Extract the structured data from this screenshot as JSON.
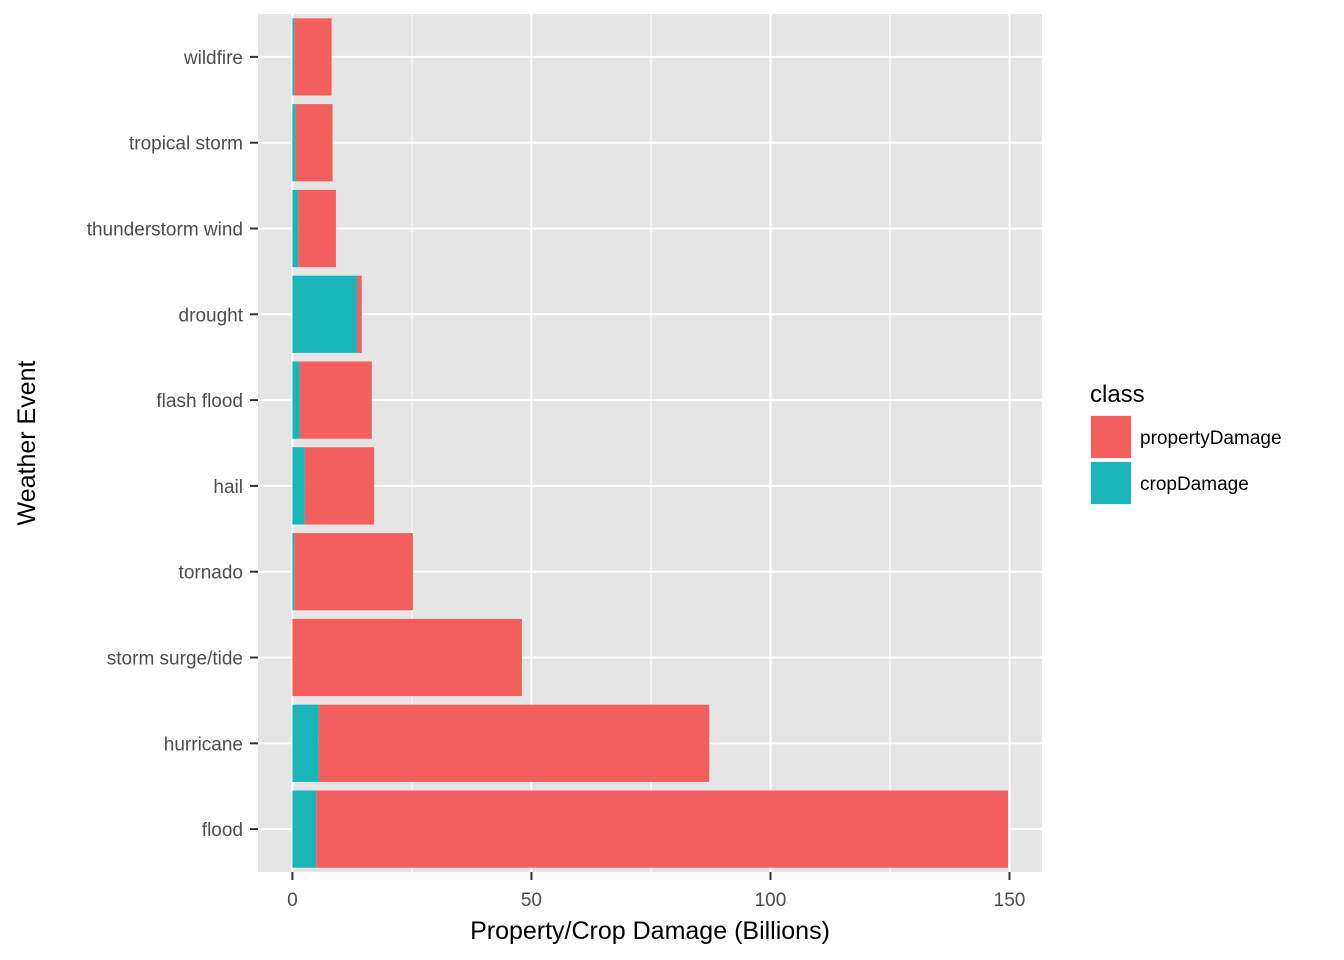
{
  "chart_data": {
    "type": "bar",
    "orientation": "horizontal",
    "stacked": true,
    "xlabel": "Property/Crop Damage (Billions)",
    "ylabel": "Weather Event",
    "xlim": [
      -7.2,
      156.8
    ],
    "x_ticks": [
      0,
      50,
      100,
      150
    ],
    "grid": true,
    "categories": [
      "flood",
      "hurricane",
      "storm surge/tide",
      "tornado",
      "hail",
      "flash flood",
      "drought",
      "thunderstorm wind",
      "tropical storm",
      "wildfire"
    ],
    "series": [
      {
        "name": "cropDamage",
        "color": "#19B5B8",
        "values": [
          5.0,
          5.5,
          0.0,
          0.4,
          2.6,
          1.5,
          13.5,
          1.2,
          0.7,
          0.4
        ]
      },
      {
        "name": "propertyDamage",
        "color": "#F25F5C",
        "values": [
          144.7,
          81.7,
          48.0,
          24.8,
          14.5,
          15.1,
          1.0,
          7.9,
          7.7,
          7.8
        ]
      }
    ],
    "legend": {
      "title": "class",
      "position": "right",
      "entries": [
        "propertyDamage",
        "cropDamage"
      ]
    }
  },
  "colors": {
    "panel_background": "#E5E5E5",
    "grid_line": "#FFFFFF",
    "tick_text": "#4D4D4D",
    "tick_mark": "#333333"
  }
}
